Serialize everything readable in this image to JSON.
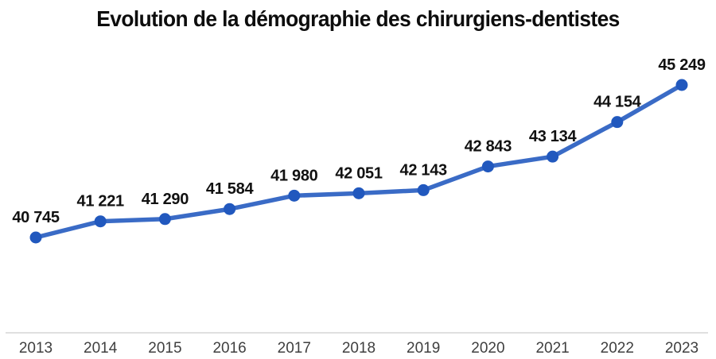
{
  "chart_data": {
    "type": "line",
    "title": "Evolution de la démographie des chirurgiens-dentistes",
    "categories": [
      "2013",
      "2014",
      "2015",
      "2016",
      "2017",
      "2018",
      "2019",
      "2020",
      "2021",
      "2022",
      "2023"
    ],
    "series": [
      {
        "name": "chirurgiens-dentistes",
        "values": [
          40745,
          41221,
          41290,
          41584,
          41980,
          42051,
          42143,
          42843,
          43134,
          44154,
          45249
        ],
        "labels": [
          "40 745",
          "41 221",
          "41 290",
          "41 584",
          "41 980",
          "42 051",
          "42 143",
          "42 843",
          "43 134",
          "44 154",
          "45 249"
        ]
      }
    ],
    "xlabel": "",
    "ylabel": "",
    "ylim": [
      40745,
      45249
    ],
    "grid": false,
    "legend": false,
    "colors": {
      "line": "#3A6BC6",
      "marker": "#2158BE",
      "axis_line": "#D6D6D6",
      "data_label": "#111111",
      "tick_label": "#3F3F3F"
    }
  }
}
